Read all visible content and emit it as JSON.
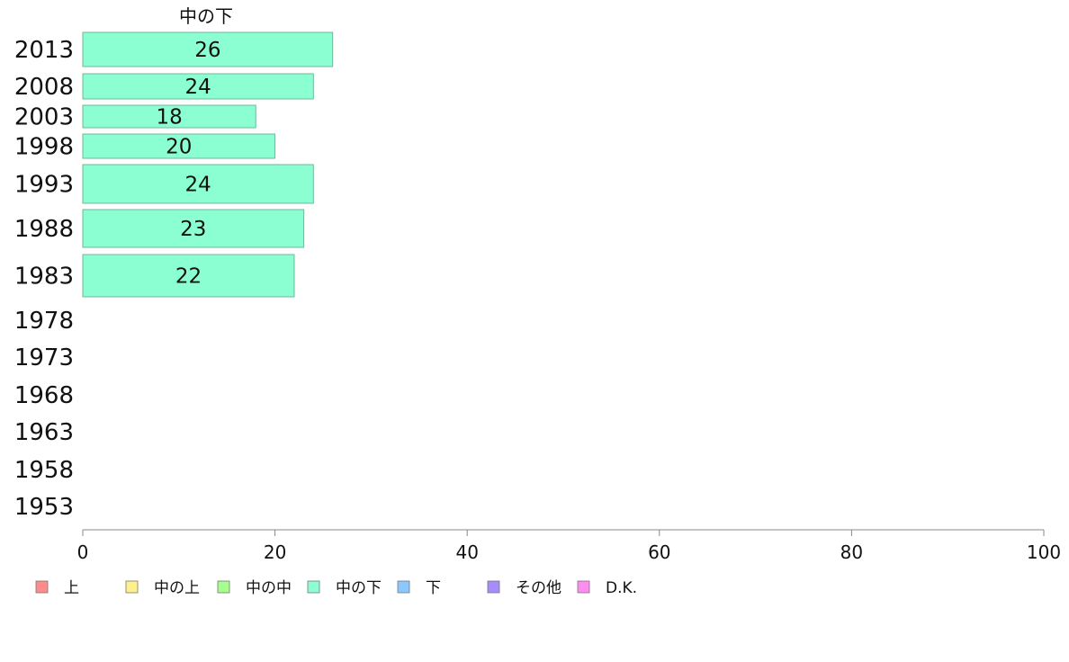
{
  "chart_data": {
    "type": "bar",
    "orientation": "horizontal",
    "panel_title": "中の下",
    "categories": [
      "2013",
      "2008",
      "2003",
      "1998",
      "1993",
      "1988",
      "1983",
      "1978",
      "1973",
      "1968",
      "1963",
      "1958",
      "1953"
    ],
    "series": [
      {
        "name": "中の下",
        "color": "#8cffd2",
        "values": [
          26,
          24,
          18,
          20,
          24,
          23,
          22,
          null,
          null,
          null,
          null,
          null,
          null
        ]
      }
    ],
    "bar_value_labels": [
      "26",
      "24",
      "18",
      "20",
      "24",
      "23",
      "22",
      "",
      "",
      "",
      "",
      "",
      ""
    ],
    "xlim": [
      0,
      100
    ],
    "xticks": [
      0,
      20,
      40,
      60,
      80,
      100
    ],
    "grid": false,
    "legend_position": "bottom",
    "legend": [
      {
        "label": "上",
        "color": "#ff8c8c"
      },
      {
        "label": "中の上",
        "color": "#fff08c"
      },
      {
        "label": "中の中",
        "color": "#a6ff8c"
      },
      {
        "label": "中の下",
        "color": "#8cffd2"
      },
      {
        "label": "下",
        "color": "#8cc8ff"
      },
      {
        "label": "その他",
        "color": "#a68cff"
      },
      {
        "label": "D.K.",
        "color": "#ff8cf0"
      }
    ]
  }
}
